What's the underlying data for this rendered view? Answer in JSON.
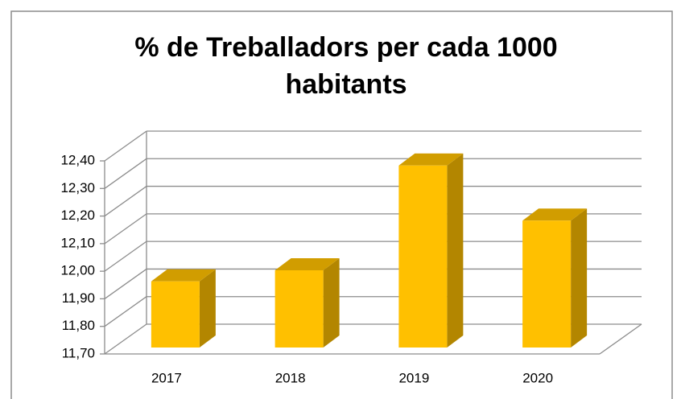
{
  "chart_data": {
    "type": "bar3d",
    "title": "% de Treballadors per cada 1000 habitants",
    "categories": [
      "2017",
      "2018",
      "2019",
      "2020"
    ],
    "values": [
      11.94,
      11.98,
      12.36,
      12.16
    ],
    "color": "#ffc000",
    "ylim": [
      11.7,
      12.4
    ],
    "yticks": [
      {
        "value": 11.7,
        "label": "11,70"
      },
      {
        "value": 11.8,
        "label": "11,80"
      },
      {
        "value": 11.9,
        "label": "11,90"
      },
      {
        "value": 12.0,
        "label": "12,00"
      },
      {
        "value": 12.1,
        "label": "12,10"
      },
      {
        "value": 12.2,
        "label": "12,20"
      },
      {
        "value": 12.3,
        "label": "12,30"
      },
      {
        "value": 12.4,
        "label": "12,40"
      }
    ],
    "grid": true
  }
}
